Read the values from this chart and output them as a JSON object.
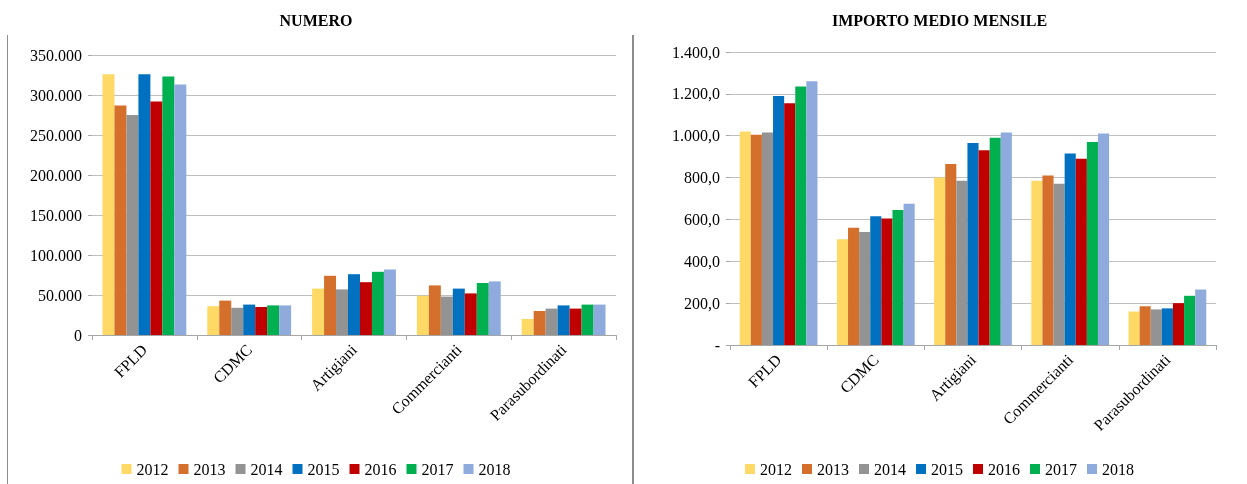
{
  "chart_data": [
    {
      "type": "bar",
      "title": "NUMERO",
      "categories": [
        "FPLD",
        "CDMC",
        "Artigiani",
        "Commercianti",
        "Parasubordinati"
      ],
      "series": [
        {
          "name": "2012",
          "color": "#ffd966",
          "values": [
            326000,
            36000,
            58000,
            49000,
            20000
          ]
        },
        {
          "name": "2013",
          "color": "#d4702c",
          "values": [
            287000,
            43000,
            74000,
            62000,
            30000
          ]
        },
        {
          "name": "2014",
          "color": "#939393",
          "values": [
            275000,
            34000,
            57000,
            48000,
            33000
          ]
        },
        {
          "name": "2015",
          "color": "#0070c0",
          "values": [
            326000,
            38000,
            76000,
            58000,
            37000
          ]
        },
        {
          "name": "2016",
          "color": "#c00000",
          "values": [
            292000,
            35000,
            66000,
            52000,
            33000
          ]
        },
        {
          "name": "2017",
          "color": "#00b050",
          "values": [
            323000,
            37000,
            79000,
            65000,
            38000
          ]
        },
        {
          "name": "2018",
          "color": "#8faadc",
          "values": [
            313000,
            37000,
            82000,
            67000,
            38000
          ]
        }
      ],
      "ylim": [
        0,
        350000
      ],
      "yticks": [
        {
          "value": 0,
          "label": "0"
        },
        {
          "value": 50000,
          "label": "50.000"
        },
        {
          "value": 100000,
          "label": "100.000"
        },
        {
          "value": 150000,
          "label": "150.000"
        },
        {
          "value": 200000,
          "label": "200.000"
        },
        {
          "value": 250000,
          "label": "250.000"
        },
        {
          "value": 300000,
          "label": "300.000"
        },
        {
          "value": 350000,
          "label": "350.000"
        }
      ],
      "grid": "y",
      "legend": "bottom"
    },
    {
      "type": "bar",
      "title": "IMPORTO MEDIO MENSILE",
      "categories": [
        "FPLD",
        "CDMC",
        "Artigiani",
        "Commercianti",
        "Parasubordinati"
      ],
      "series": [
        {
          "name": "2012",
          "color": "#ffd966",
          "values": [
            1020,
            505,
            800,
            785,
            160
          ]
        },
        {
          "name": "2013",
          "color": "#d4702c",
          "values": [
            1005,
            560,
            865,
            810,
            185
          ]
        },
        {
          "name": "2014",
          "color": "#939393",
          "values": [
            1015,
            540,
            785,
            770,
            170
          ]
        },
        {
          "name": "2015",
          "color": "#0070c0",
          "values": [
            1190,
            615,
            965,
            915,
            175
          ]
        },
        {
          "name": "2016",
          "color": "#c00000",
          "values": [
            1155,
            605,
            930,
            890,
            200
          ]
        },
        {
          "name": "2017",
          "color": "#00b050",
          "values": [
            1235,
            645,
            990,
            970,
            235
          ]
        },
        {
          "name": "2018",
          "color": "#8faadc",
          "values": [
            1260,
            675,
            1015,
            1010,
            265
          ]
        }
      ],
      "ylim": [
        0,
        1400
      ],
      "yticks": [
        {
          "value": 0,
          "label": "-"
        },
        {
          "value": 200,
          "label": "200,0"
        },
        {
          "value": 400,
          "label": "400,0"
        },
        {
          "value": 600,
          "label": "600,0"
        },
        {
          "value": 800,
          "label": "800,0"
        },
        {
          "value": 1000,
          "label": "1.000,0"
        },
        {
          "value": 1200,
          "label": "1.200,0"
        },
        {
          "value": 1400,
          "label": "1.400,0"
        }
      ],
      "grid": "y",
      "legend": "bottom"
    }
  ]
}
